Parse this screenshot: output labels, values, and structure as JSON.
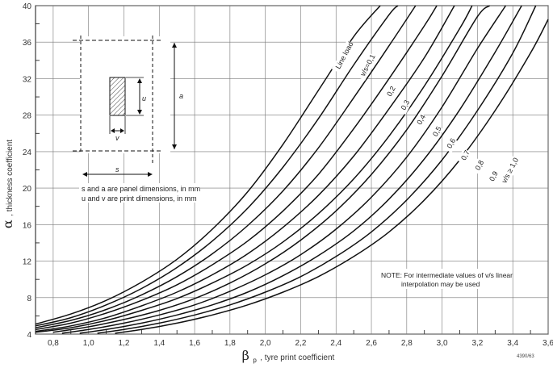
{
  "chart_data": {
    "type": "line",
    "xlim": [
      0.7,
      3.6
    ],
    "ylim": [
      4,
      40
    ],
    "x_ticks": [
      "0,8",
      "1,0",
      "1,2",
      "1,4",
      "1,6",
      "1,8",
      "2,0",
      "2,2",
      "2,4",
      "2,6",
      "2,8",
      "3,0",
      "3,2",
      "3,4",
      "3,6"
    ],
    "y_ticks": [
      "4",
      "8",
      "12",
      "16",
      "20",
      "24",
      "28",
      "32",
      "36",
      "40"
    ],
    "xlabel_symbol": "β",
    "xlabel_sub": "p",
    "xlabel_text": ", tyre print coefficient",
    "ylabel_symbol": "α",
    "ylabel_text": ", thickness coefficient",
    "grid": true,
    "series": [
      {
        "name": "Line load",
        "x": [
          0.7,
          0.9,
          1.1,
          1.3,
          1.5,
          1.7,
          1.9,
          2.1,
          2.3,
          2.5,
          2.65
        ],
        "y": [
          5.1,
          6.2,
          7.7,
          9.7,
          12.2,
          15.5,
          19.6,
          24.8,
          30.7,
          36.6,
          40
        ]
      },
      {
        "name": "v/s=0,1",
        "x": [
          0.7,
          0.9,
          1.1,
          1.3,
          1.5,
          1.7,
          1.9,
          2.1,
          2.3,
          2.5,
          2.7,
          2.75
        ],
        "y": [
          4.9,
          5.8,
          7.2,
          9.0,
          11.3,
          14.2,
          17.8,
          22.3,
          27.6,
          33.5,
          39.0,
          40
        ]
      },
      {
        "name": "0,2",
        "x": [
          0.7,
          0.9,
          1.1,
          1.3,
          1.5,
          1.7,
          1.9,
          2.1,
          2.3,
          2.5,
          2.7,
          2.85
        ],
        "y": [
          4.7,
          5.5,
          6.7,
          8.3,
          10.3,
          12.8,
          15.9,
          19.7,
          24.4,
          29.9,
          35.6,
          40
        ]
      },
      {
        "name": "0,3",
        "x": [
          0.7,
          0.9,
          1.1,
          1.3,
          1.5,
          1.7,
          1.9,
          2.1,
          2.3,
          2.5,
          2.7,
          2.9,
          2.97
        ],
        "y": [
          4.5,
          5.2,
          6.3,
          7.7,
          9.4,
          11.6,
          14.2,
          17.5,
          21.5,
          26.5,
          32.0,
          37.8,
          40
        ]
      },
      {
        "name": "0,4",
        "x": [
          0.7,
          0.9,
          1.1,
          1.3,
          1.5,
          1.7,
          1.9,
          2.1,
          2.3,
          2.5,
          2.7,
          2.9,
          3.07
        ],
        "y": [
          4.3,
          4.9,
          5.8,
          7.1,
          8.6,
          10.5,
          12.8,
          15.7,
          19.2,
          23.5,
          28.7,
          34.3,
          40
        ]
      },
      {
        "name": "0,5",
        "x": [
          0.7,
          0.9,
          1.1,
          1.3,
          1.5,
          1.7,
          1.9,
          2.1,
          2.3,
          2.5,
          2.7,
          2.9,
          3.1,
          3.17
        ],
        "y": [
          4.2,
          4.7,
          5.5,
          6.6,
          7.9,
          9.6,
          11.6,
          14.1,
          17.2,
          21.0,
          25.7,
          31.2,
          37.5,
          40
        ]
      },
      {
        "name": "0,6",
        "x": [
          0.8,
          1.0,
          1.2,
          1.4,
          1.6,
          1.8,
          2.0,
          2.2,
          2.4,
          2.6,
          2.8,
          3.0,
          3.2,
          3.27
        ],
        "y": [
          4.2,
          4.8,
          5.6,
          6.6,
          7.9,
          9.6,
          11.7,
          14.3,
          17.5,
          21.5,
          26.4,
          32.3,
          38.8,
          40
        ]
      },
      {
        "name": "0,7",
        "x": [
          0.85,
          1.0,
          1.2,
          1.4,
          1.6,
          1.8,
          2.0,
          2.2,
          2.4,
          2.6,
          2.8,
          3.0,
          3.2,
          3.36
        ],
        "y": [
          4.1,
          4.5,
          5.2,
          6.1,
          7.2,
          8.7,
          10.5,
          12.7,
          15.5,
          19.0,
          23.4,
          28.9,
          35.3,
          40
        ]
      },
      {
        "name": "0,8",
        "x": [
          0.95,
          1.1,
          1.3,
          1.5,
          1.7,
          1.9,
          2.1,
          2.3,
          2.5,
          2.7,
          2.9,
          3.1,
          3.3,
          3.45
        ],
        "y": [
          4.1,
          4.5,
          5.2,
          6.1,
          7.2,
          8.6,
          10.4,
          12.6,
          15.3,
          18.8,
          23.2,
          28.6,
          34.9,
          40
        ]
      },
      {
        "name": "0,9",
        "x": [
          1.05,
          1.2,
          1.4,
          1.6,
          1.8,
          2.0,
          2.2,
          2.4,
          2.6,
          2.8,
          3.0,
          3.2,
          3.4,
          3.53
        ],
        "y": [
          4.1,
          4.5,
          5.2,
          6.1,
          7.2,
          8.6,
          10.3,
          12.5,
          15.2,
          18.7,
          23.1,
          28.5,
          34.8,
          40
        ]
      },
      {
        "name": "v/s ≥ 1,0",
        "x": [
          1.15,
          1.3,
          1.5,
          1.7,
          1.9,
          2.1,
          2.3,
          2.5,
          2.7,
          2.9,
          3.1,
          3.3,
          3.5,
          3.6
        ],
        "y": [
          4.1,
          4.5,
          5.2,
          6.1,
          7.2,
          8.6,
          10.3,
          12.5,
          15.2,
          18.7,
          23.1,
          28.5,
          34.8,
          38.5
        ]
      }
    ]
  },
  "inset": {
    "label_s": "s",
    "label_a": "a",
    "label_u": "u",
    "label_v": "v",
    "caption_line1": "s and a are panel dimensions, in mm",
    "caption_line2": "u and v are print dimensions, in mm"
  },
  "note": {
    "line1": "NOTE: For intermediate values of v/s linear",
    "line2": "interpolation may be used"
  },
  "figure_id": "4390/63"
}
